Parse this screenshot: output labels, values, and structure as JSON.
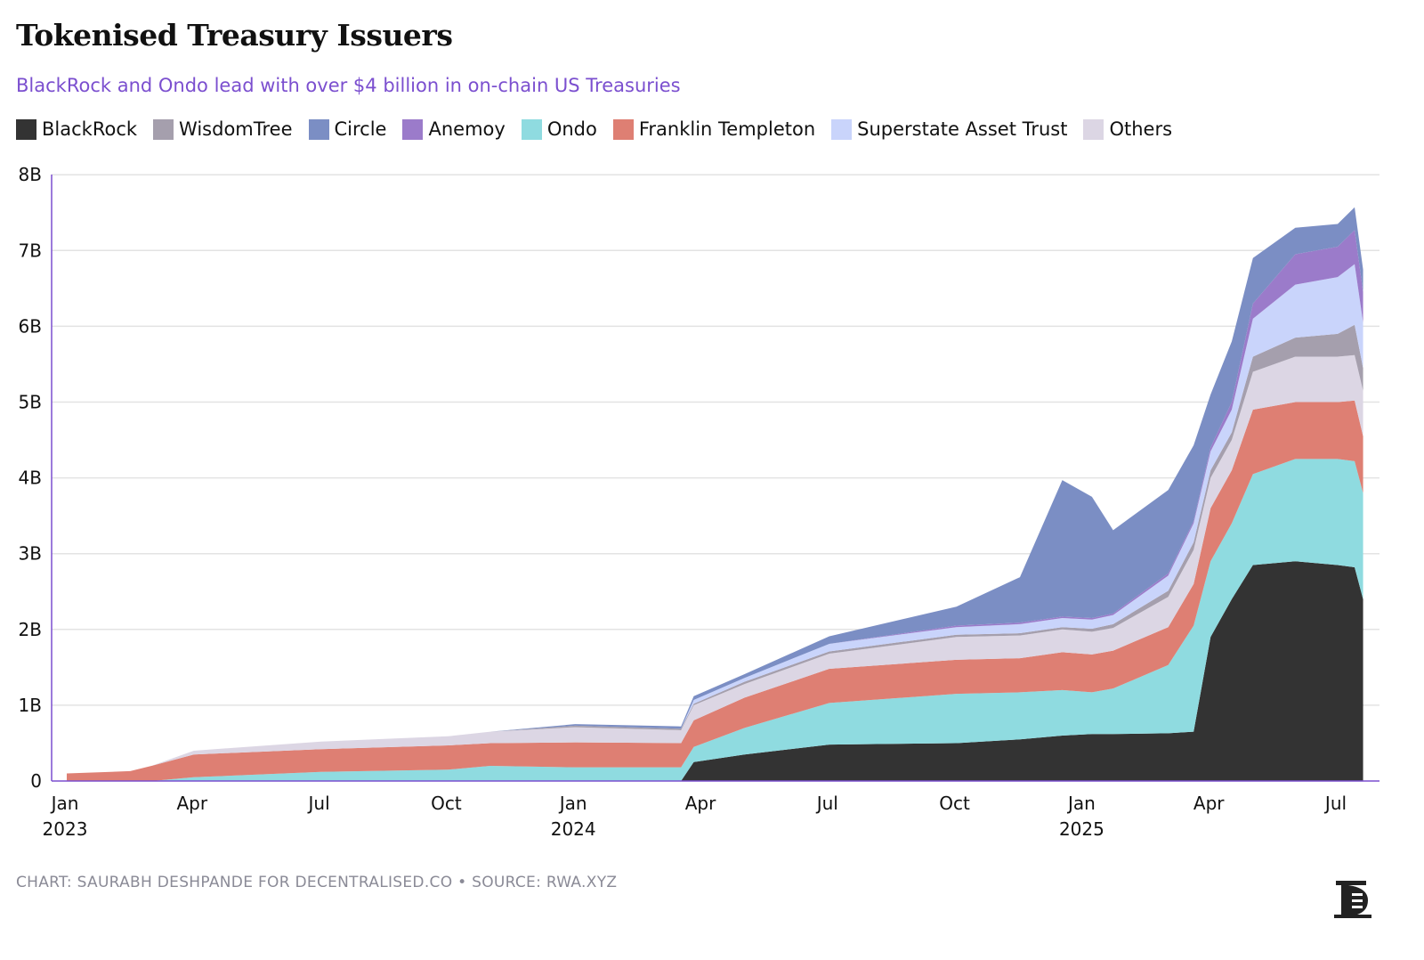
{
  "title": "Tokenised Treasury Issuers",
  "subtitle": "BlackRock and Ondo lead with over $4 billion in on-chain US Treasuries",
  "footer": "CHART: SAURABH DESHPANDE FOR DECENTRALISED.CO • SOURCE: RWA.XYZ",
  "logo_text": "D",
  "chart_data": {
    "type": "area",
    "stacked": true,
    "title": "Tokenised Treasury Issuers",
    "xlabel": "",
    "ylabel": "",
    "x_unit": "months since Jan 2023",
    "ylim": [
      0,
      8
    ],
    "y_unit": "billion USD",
    "grid": true,
    "legend_position": "top-left",
    "y_ticks": [
      "0",
      "1B",
      "2B",
      "3B",
      "4B",
      "5B",
      "6B",
      "7B",
      "8B"
    ],
    "x_ticks": [
      {
        "m": 0,
        "label": "Jan",
        "year": "2023"
      },
      {
        "m": 3,
        "label": "Apr",
        "year": ""
      },
      {
        "m": 6,
        "label": "Jul",
        "year": ""
      },
      {
        "m": 9,
        "label": "Oct",
        "year": ""
      },
      {
        "m": 12,
        "label": "Jan",
        "year": "2024"
      },
      {
        "m": 15,
        "label": "Apr",
        "year": ""
      },
      {
        "m": 18,
        "label": "Jul",
        "year": ""
      },
      {
        "m": 21,
        "label": "Oct",
        "year": ""
      },
      {
        "m": 24,
        "label": "Jan",
        "year": "2025"
      },
      {
        "m": 27,
        "label": "Apr",
        "year": ""
      },
      {
        "m": 30,
        "label": "Jul",
        "year": ""
      }
    ],
    "x": [
      0,
      1.5,
      2,
      3,
      6,
      9,
      10,
      12,
      14.5,
      14.8,
      16,
      18,
      21,
      22.5,
      23.5,
      24.2,
      24.7,
      26,
      26.6,
      27,
      27.5,
      28,
      29,
      30,
      30.4,
      30.6
    ],
    "series": [
      {
        "name": "BlackRock",
        "color": "#333333",
        "values": [
          0,
          0,
          0,
          0,
          0,
          0,
          0,
          0,
          0,
          0.25,
          0.35,
          0.48,
          0.5,
          0.55,
          0.6,
          0.62,
          0.62,
          0.63,
          0.65,
          1.9,
          2.4,
          2.85,
          2.9,
          2.85,
          2.82,
          2.4
        ]
      },
      {
        "name": "Ondo",
        "color": "#8fdbe0",
        "values": [
          0,
          0,
          0,
          0.05,
          0.12,
          0.15,
          0.2,
          0.18,
          0.18,
          0.2,
          0.35,
          0.55,
          0.65,
          0.62,
          0.6,
          0.55,
          0.6,
          0.9,
          1.4,
          1.0,
          1.0,
          1.2,
          1.35,
          1.4,
          1.4,
          1.4
        ]
      },
      {
        "name": "Franklin Templeton",
        "color": "#de7f73",
        "values": [
          0.1,
          0.13,
          0.2,
          0.3,
          0.3,
          0.32,
          0.3,
          0.33,
          0.32,
          0.35,
          0.4,
          0.45,
          0.45,
          0.45,
          0.5,
          0.5,
          0.5,
          0.5,
          0.55,
          0.7,
          0.7,
          0.85,
          0.75,
          0.75,
          0.8,
          0.75
        ]
      },
      {
        "name": "Others",
        "color": "#dcd6e4",
        "values": [
          0,
          0,
          0,
          0.05,
          0.1,
          0.12,
          0.15,
          0.2,
          0.17,
          0.2,
          0.18,
          0.2,
          0.3,
          0.3,
          0.3,
          0.3,
          0.3,
          0.4,
          0.45,
          0.4,
          0.4,
          0.5,
          0.6,
          0.6,
          0.6,
          0.6
        ]
      },
      {
        "name": "WisdomTree",
        "color": "#a59fad",
        "values": [
          0,
          0,
          0,
          0,
          0,
          0,
          0,
          0.02,
          0.02,
          0.02,
          0.03,
          0.03,
          0.03,
          0.03,
          0.03,
          0.04,
          0.05,
          0.08,
          0.1,
          0.1,
          0.1,
          0.2,
          0.25,
          0.3,
          0.4,
          0.3
        ]
      },
      {
        "name": "Superstate Asset Trust",
        "color": "#c9d4fb",
        "values": [
          0,
          0,
          0,
          0,
          0,
          0,
          0,
          0,
          0,
          0.05,
          0.05,
          0.1,
          0.1,
          0.12,
          0.12,
          0.12,
          0.12,
          0.2,
          0.25,
          0.25,
          0.3,
          0.5,
          0.7,
          0.75,
          0.8,
          0.6
        ]
      },
      {
        "name": "Anemoy",
        "color": "#9b7bca",
        "values": [
          0,
          0,
          0,
          0,
          0,
          0,
          0,
          0,
          0,
          0,
          0,
          0,
          0.02,
          0.02,
          0.02,
          0.02,
          0.02,
          0.03,
          0.03,
          0.05,
          0.1,
          0.2,
          0.4,
          0.4,
          0.45,
          0.4
        ]
      },
      {
        "name": "Circle",
        "color": "#7b8ec4",
        "values": [
          0,
          0,
          0,
          0,
          0,
          0,
          0,
          0.02,
          0.03,
          0.05,
          0.05,
          0.1,
          0.25,
          0.6,
          1.8,
          1.6,
          1.1,
          1.1,
          1.0,
          0.7,
          0.8,
          0.6,
          0.35,
          0.3,
          0.3,
          0.3
        ]
      }
    ],
    "legend_order": [
      "BlackRock",
      "WisdomTree",
      "Circle",
      "Anemoy",
      "Ondo",
      "Franklin Templeton",
      "Superstate Asset Trust",
      "Others"
    ]
  }
}
